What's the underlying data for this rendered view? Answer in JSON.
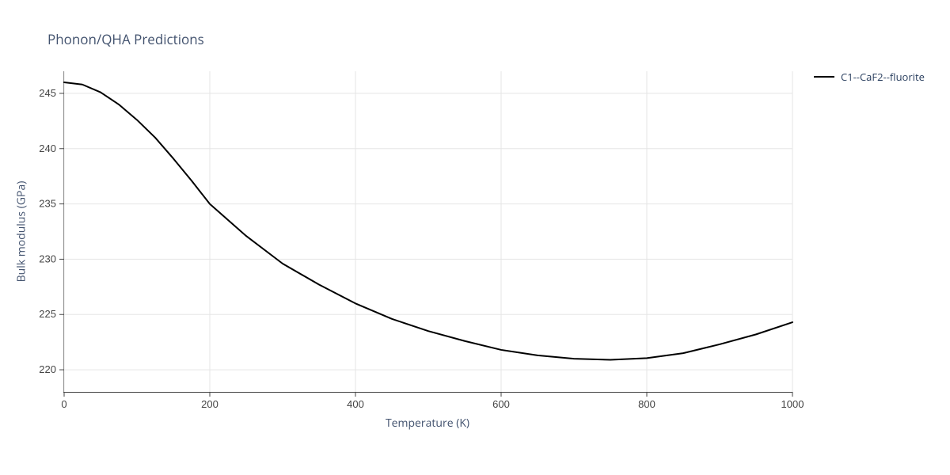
{
  "chart": {
    "type": "line",
    "title": "Phonon/QHA Predictions",
    "xlabel": "Temperature (K)",
    "ylabel": "Bulk modulus (GPa)",
    "title_fontsize": 17,
    "label_fontsize": 14,
    "tick_fontsize": 13,
    "background_color": "#ffffff",
    "grid_color": "#e5e5e5",
    "axis_line_color": "#444444",
    "text_color": "#42526e",
    "xlim": [
      0,
      1000
    ],
    "ylim": [
      218,
      247
    ],
    "xticks": [
      0,
      200,
      400,
      600,
      800,
      1000
    ],
    "yticks": [
      220,
      225,
      230,
      235,
      240,
      245
    ],
    "line_width": 2,
    "series": [
      {
        "name": "C1--CaF2--fluorite",
        "color": "#000000",
        "x": [
          0,
          25,
          50,
          75,
          100,
          125,
          150,
          175,
          200,
          250,
          300,
          350,
          400,
          450,
          500,
          550,
          600,
          650,
          700,
          750,
          800,
          850,
          900,
          950,
          1000
        ],
        "y": [
          246.0,
          245.8,
          245.1,
          244.0,
          242.6,
          241.0,
          239.1,
          237.1,
          235.0,
          232.1,
          229.6,
          227.7,
          226.0,
          224.6,
          223.5,
          222.6,
          221.8,
          221.3,
          221.0,
          220.9,
          221.05,
          221.5,
          222.3,
          223.2,
          224.3
        ]
      }
    ],
    "legend": {
      "position": "right",
      "entries": [
        "C1--CaF2--fluorite"
      ]
    }
  }
}
